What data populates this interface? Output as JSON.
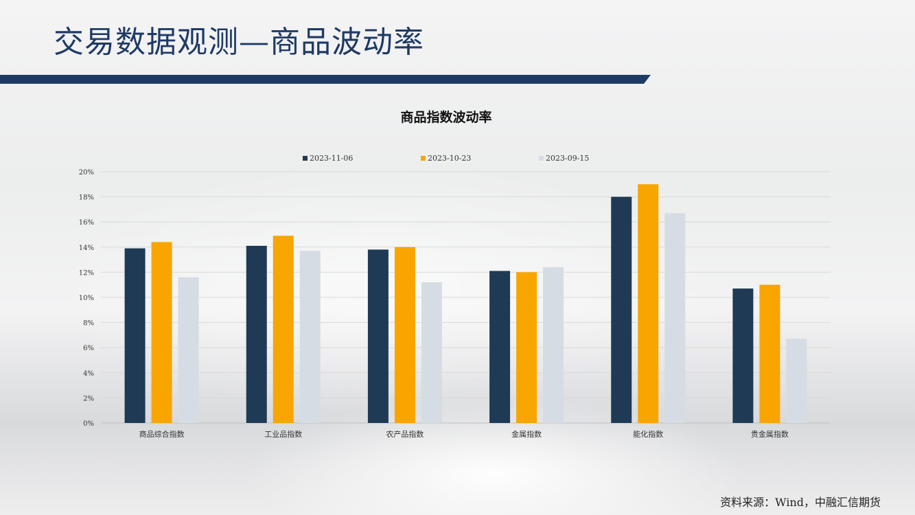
{
  "page": {
    "title": "交易数据观测—商品波动率",
    "source": "资料来源：Wind，中融汇信期货"
  },
  "colors": {
    "title": "#1f3a64",
    "rule": "#1f3a64",
    "series": [
      "#1f3a55",
      "#f8a500",
      "#d6dce4"
    ]
  },
  "chart_data": {
    "type": "bar",
    "title": "商品指数波动率",
    "xlabel": "",
    "ylabel": "",
    "categories": [
      "商品综合指数",
      "工业品指数",
      "农产品指数",
      "金属指数",
      "能化指数",
      "贵金属指数"
    ],
    "series": [
      {
        "name": "2023-11-06",
        "values": [
          13.9,
          14.1,
          13.8,
          12.1,
          18.0,
          10.7
        ]
      },
      {
        "name": "2023-10-23",
        "values": [
          14.4,
          14.9,
          14.0,
          12.0,
          19.0,
          11.0
        ]
      },
      {
        "name": "2023-09-15",
        "values": [
          11.6,
          13.7,
          11.2,
          12.4,
          16.7,
          6.7
        ]
      }
    ],
    "ylim": [
      0,
      20
    ],
    "yticks": [
      "0%",
      "2%",
      "4%",
      "6%",
      "8%",
      "10%",
      "12%",
      "14%",
      "16%",
      "18%",
      "20%"
    ],
    "grid": true,
    "legend_position": "top"
  }
}
